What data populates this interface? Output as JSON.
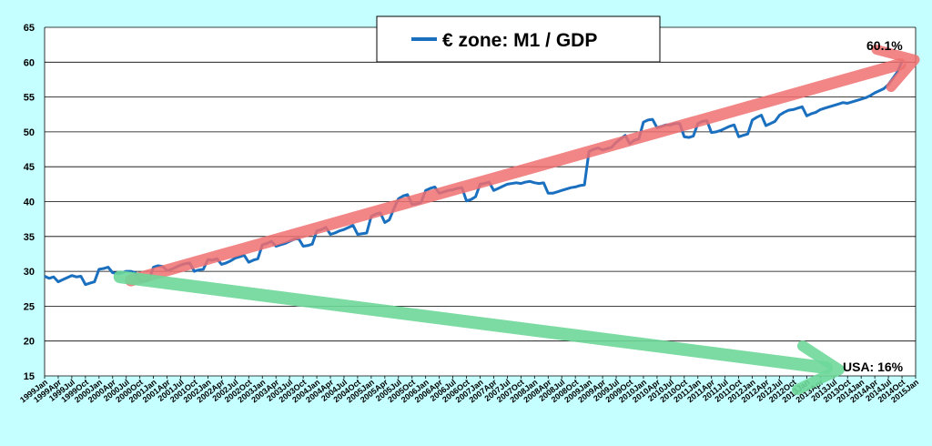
{
  "chart_data": {
    "type": "line",
    "title": "",
    "xlabel": "",
    "ylabel": "",
    "ylim": [
      15,
      65
    ],
    "yticks": [
      15,
      20,
      25,
      30,
      35,
      40,
      45,
      50,
      55,
      60,
      65
    ],
    "grid": true,
    "legend_position": "top-center",
    "x_start_month": "1999 Jan",
    "x_tick_labels": [
      "1999Jan",
      "1999Apr",
      "1999Jul",
      "1999Oct",
      "2000Jan",
      "2000Apr",
      "2000Jul",
      "2000Oct",
      "2001Jan",
      "2001Apr",
      "2001Jul",
      "2001Oct",
      "2002Jan",
      "2002Apr",
      "2002Jul",
      "2002Oct",
      "2003Jan",
      "2003Apr",
      "2003Jul",
      "2003Oct",
      "2004Jan",
      "2004Apr",
      "2004Jul",
      "2004Oct",
      "2005Jan",
      "2005Apr",
      "2005Jul",
      "2005Oct",
      "2006Jan",
      "2006Apr",
      "2006Jul",
      "2006Oct",
      "2007Jan",
      "2007Apr",
      "2007Jul",
      "2007Oct",
      "2008Jan",
      "2008Apr",
      "2008Jul",
      "2008Oct",
      "2009Jan",
      "2009Apr",
      "2009Jul",
      "2009Oct",
      "2010Jan",
      "2010Apr",
      "2010Jul",
      "2010Oct",
      "2011Jan",
      "2011Apr",
      "2011Jul",
      "2011Oct",
      "2012Jan",
      "2012Apr",
      "2012Jul",
      "2012Oct",
      "2013Jan",
      "2013Apr",
      "2013Jul",
      "2013Oct",
      "2014Jan",
      "2014Apr",
      "2014Jul",
      "2014Oct",
      "2015Jan"
    ],
    "series": [
      {
        "name": "€ zone:  M1 / GDP",
        "color": "#1a6fbf",
        "values": [
          29.3,
          29.0,
          29.2,
          28.5,
          28.8,
          29.1,
          29.4,
          29.2,
          29.3,
          28.1,
          28.3,
          28.5,
          30.3,
          30.4,
          30.6,
          29.8,
          29.7,
          29.8,
          30.0,
          30.0,
          29.8,
          28.6,
          28.6,
          28.7,
          30.6,
          30.8,
          30.7,
          30.1,
          30.3,
          30.6,
          30.9,
          31.1,
          31.2,
          30.0,
          30.2,
          30.3,
          31.7,
          31.6,
          31.8,
          31.0,
          31.2,
          31.5,
          31.9,
          32.1,
          32.3,
          31.3,
          31.6,
          31.8,
          33.8,
          34.0,
          34.3,
          33.6,
          33.8,
          34.0,
          34.3,
          34.6,
          34.7,
          33.6,
          33.7,
          33.9,
          35.8,
          36.0,
          36.3,
          35.3,
          35.5,
          35.8,
          36.0,
          36.3,
          36.6,
          35.3,
          35.4,
          35.5,
          37.9,
          38.2,
          38.4,
          37.0,
          37.4,
          39.0,
          40.4,
          40.8,
          41.0,
          39.6,
          39.7,
          39.9,
          41.6,
          41.9,
          42.1,
          41.2,
          41.4,
          41.6,
          41.7,
          41.9,
          42.0,
          40.1,
          40.3,
          40.7,
          42.5,
          42.6,
          42.8,
          41.6,
          41.9,
          42.2,
          42.5,
          42.6,
          42.7,
          42.6,
          42.8,
          42.9,
          42.7,
          42.6,
          42.7,
          41.2,
          41.2,
          41.4,
          41.6,
          41.8,
          42.0,
          42.1,
          42.3,
          42.4,
          47.2,
          47.5,
          47.7,
          47.4,
          47.6,
          47.8,
          48.5,
          49.0,
          49.5,
          48.3,
          48.8,
          49.0,
          51.4,
          51.7,
          51.8,
          50.6,
          50.8,
          51.0,
          51.0,
          51.2,
          51.2,
          49.3,
          49.2,
          49.4,
          51.2,
          51.5,
          51.6,
          49.9,
          50.0,
          50.2,
          50.5,
          50.8,
          51.0,
          49.3,
          49.5,
          49.7,
          51.7,
          52.1,
          52.4,
          50.9,
          51.2,
          51.5,
          52.4,
          52.8,
          53.1,
          53.2,
          53.4,
          53.6,
          52.3,
          52.6,
          52.8,
          53.2,
          53.4,
          53.6,
          53.8,
          54.0,
          54.2,
          54.1,
          54.3,
          54.5,
          54.7,
          54.9,
          55.2,
          55.6,
          55.9,
          56.2,
          56.8,
          57.7,
          58.6,
          60.1
        ]
      }
    ],
    "annotations": [
      {
        "text": "60.1%",
        "color": "#f07070"
      },
      {
        "text": "USA: 16%",
        "color": "#6ed89a"
      }
    ]
  }
}
